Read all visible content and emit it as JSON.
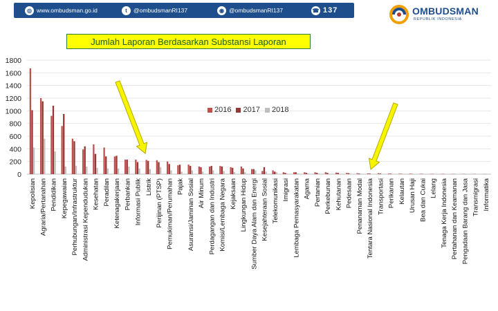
{
  "header": {
    "website": "www.ombudsman.go.id",
    "twitter": "@ombudsmanRI137",
    "instagram": "@ombudsmanRI137",
    "hotline": "137",
    "logo_title": "OMBUDSMAN",
    "logo_subtitle": "REPUBLIK INDONESIA"
  },
  "colors": {
    "brand": "#1e4e8c",
    "s2016": "#c0504d",
    "s2017": "#953735",
    "s2018": "#bfbfbf",
    "arrow": "#f5f500"
  },
  "chart_data": {
    "type": "bar",
    "title": "Jumlah Laporan Berdasarkan Substansi Laporan",
    "ylim": [
      0,
      1800
    ],
    "yticks": [
      0,
      200,
      400,
      600,
      800,
      1000,
      1200,
      1400,
      1600,
      1800
    ],
    "legend_position": "top-center",
    "categories": [
      "Kepolisian",
      "Agraria/Pertanahan",
      "Pendidikan",
      "Kepegawaian",
      "Perhubungan/Infrastruktur",
      "Administrasi Kependudukan",
      "Kesehatan",
      "Peradilan",
      "Ketenagakerjaan",
      "Perbankan",
      "Informasi Publik",
      "Listrik",
      "Perijinan (PTSP)",
      "Pemukiman/Perumahan",
      "Pajak",
      "Asuransi/Jaminan Sosial",
      "Air Minum",
      "Perdagangan dan Industri",
      "Komisi/Lembaga Negara",
      "Kejaksaan",
      "Lingkungan Hidup",
      "Sumber Daya Alam dan Energi",
      "Kesejahteraan Sosial",
      "Telekomunikasi",
      "Imigrasi",
      "Lembaga Pemasyarakatan",
      "Agama",
      "Pertanian",
      "Perkebunan",
      "Kehutanan",
      "Pedesaan",
      "Penanaman Modal",
      "Tentara Nasional Indonesia",
      "Transportasi",
      "Perikanan",
      "Kelautan",
      "Urusan Haji",
      "Bea dan Cukai",
      "Lelang",
      "Tenaga Kerja Indonesia",
      "Pertahanan dan Keamanan",
      "Pengadaan Barang dan Jasa",
      "Transmigrasi",
      "Informatika"
    ],
    "series": [
      {
        "name": "2016",
        "values": [
          1670,
          1200,
          920,
          760,
          560,
          390,
          470,
          420,
          280,
          230,
          230,
          225,
          220,
          200,
          140,
          150,
          120,
          120,
          130,
          110,
          120,
          80,
          50,
          60,
          30,
          30,
          30,
          30,
          30,
          25,
          20,
          15,
          12,
          15,
          10,
          8,
          8,
          6,
          5,
          5,
          4,
          4,
          3,
          2
        ]
      },
      {
        "name": "2017",
        "values": [
          1010,
          1150,
          1080,
          950,
          520,
          440,
          320,
          280,
          290,
          230,
          190,
          210,
          190,
          160,
          150,
          130,
          110,
          130,
          120,
          100,
          90,
          80,
          110,
          40,
          20,
          30,
          20,
          20,
          20,
          20,
          15,
          10,
          10,
          10,
          8,
          6,
          6,
          5,
          4,
          4,
          3,
          3,
          3,
          2
        ]
      },
      {
        "name": "2018",
        "values": [
          420,
          560,
          360,
          120,
          130,
          120,
          100,
          90,
          90,
          120,
          90,
          80,
          110,
          60,
          40,
          60,
          40,
          60,
          50,
          30,
          30,
          60,
          40,
          30,
          10,
          10,
          10,
          10,
          8,
          8,
          8,
          6,
          5,
          5,
          4,
          4,
          4,
          3,
          3,
          2,
          2,
          2,
          2,
          1
        ]
      }
    ]
  }
}
